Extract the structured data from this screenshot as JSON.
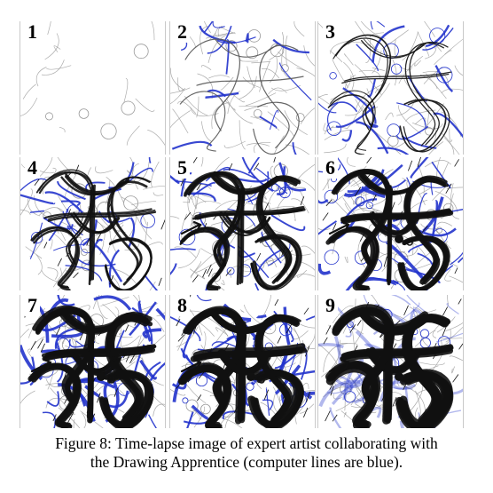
{
  "figure": {
    "panels": [
      {
        "number": "1",
        "stage": 1
      },
      {
        "number": "2",
        "stage": 2
      },
      {
        "number": "3",
        "stage": 3
      },
      {
        "number": "4",
        "stage": 4
      },
      {
        "number": "5",
        "stage": 5
      },
      {
        "number": "6",
        "stage": 6
      },
      {
        "number": "7",
        "stage": 7
      },
      {
        "number": "8",
        "stage": 8
      },
      {
        "number": "9",
        "stage": 9
      }
    ],
    "colors": {
      "computer_lines": "#2233cc",
      "artist_lines": "#111111",
      "sketch_lines": "#999999"
    }
  },
  "caption": {
    "line1": "Figure 8: Time-lapse image of expert artist collaborating with",
    "line2": "the Drawing Apprentice (computer lines are blue)."
  }
}
